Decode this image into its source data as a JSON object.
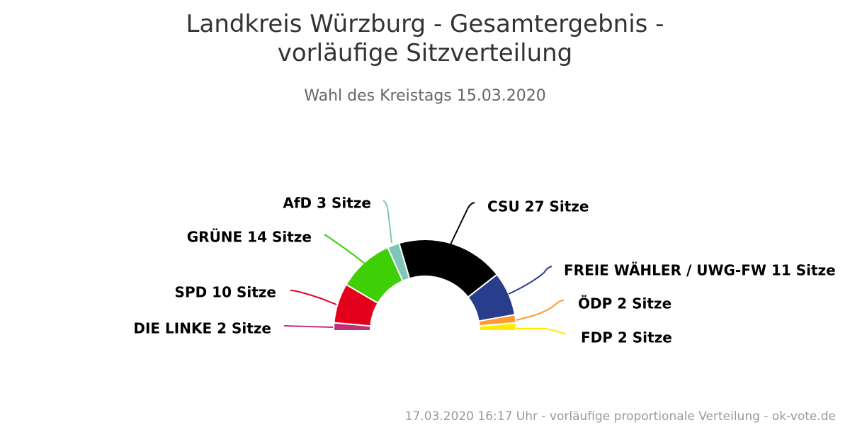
{
  "chart_data": {
    "type": "pie",
    "title": "Landkreis Würzburg - Gesamtergebnis - vorläufige Sitzverteilung",
    "subtitle": "Wahl des Kreistags 15.03.2020",
    "unit": "Sitze",
    "series": [
      {
        "name": "DIE LINKE",
        "value": 2,
        "color": "#be3075"
      },
      {
        "name": "SPD",
        "value": 10,
        "color": "#e2001a"
      },
      {
        "name": "GRÜNE",
        "value": 14,
        "color": "#3ecf06"
      },
      {
        "name": "AfD",
        "value": 3,
        "color": "#80c5b9"
      },
      {
        "name": "CSU",
        "value": 27,
        "color": "#000000"
      },
      {
        "name": "FREIE WÄHLER / UWG-FW",
        "value": 11,
        "color": "#283d8c"
      },
      {
        "name": "ÖDP",
        "value": 2,
        "color": "#ff9933"
      },
      {
        "name": "FDP",
        "value": 2,
        "color": "#ffed00"
      }
    ],
    "labels": [
      "DIE LINKE 2 Sitze",
      "SPD 10 Sitze",
      "GRÜNE 14 Sitze",
      "AfD 3 Sitze",
      "CSU 27 Sitze",
      "FREIE WÄHLER / UWG-FW 11 Sitze",
      "ÖDP 2 Sitze",
      "FDP 2 Sitze"
    ],
    "footer": "17.03.2020 16:17 Uhr - vorläufige proportionale Verteilung - ok-vote.de"
  }
}
